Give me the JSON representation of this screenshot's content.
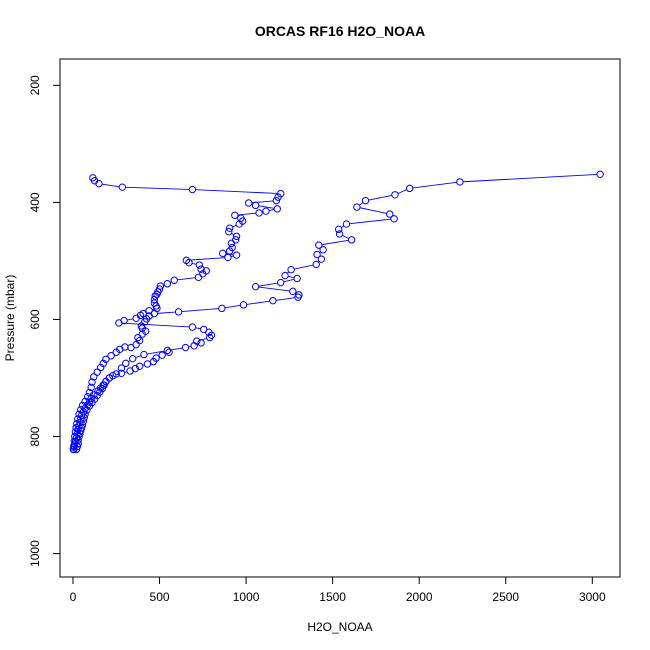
{
  "chart_data": {
    "type": "line",
    "title": "ORCAS RF16 H2O_NOAA",
    "xlabel": "H2O_NOAA",
    "ylabel": "Pressure (mbar)",
    "xlim": [
      -75,
      3160
    ],
    "ylim": [
      1040,
      155
    ],
    "y_reversed": true,
    "x_ticks": [
      0,
      500,
      1000,
      1500,
      2000,
      2500,
      3000
    ],
    "y_ticks": [
      200,
      400,
      600,
      800,
      1000
    ],
    "grid": false,
    "legend": "none",
    "marker": "open-circle",
    "color": "#0000ff",
    "series": [
      {
        "points": [
          [
            3045,
            352
          ],
          [
            2235,
            365
          ],
          [
            1945,
            376
          ],
          [
            1860,
            387
          ],
          [
            1690,
            397
          ],
          [
            1640,
            408
          ],
          [
            1830,
            420
          ],
          [
            1855,
            428
          ],
          [
            1580,
            437
          ],
          [
            1535,
            446
          ],
          [
            1540,
            454
          ],
          [
            1610,
            464
          ],
          [
            1420,
            473
          ],
          [
            1445,
            481
          ],
          [
            1410,
            489
          ],
          [
            1435,
            497
          ],
          [
            1405,
            506
          ],
          [
            1260,
            515
          ],
          [
            1225,
            525
          ],
          [
            1295,
            530
          ],
          [
            1200,
            537
          ],
          [
            1055,
            544
          ],
          [
            1270,
            552
          ],
          [
            1305,
            558
          ],
          [
            1300,
            562
          ],
          [
            1155,
            568
          ],
          [
            985,
            575
          ],
          [
            860,
            581
          ],
          [
            610,
            587
          ],
          [
            470,
            590
          ],
          [
            440,
            594
          ],
          [
            425,
            599
          ],
          [
            415,
            604
          ],
          [
            395,
            611
          ],
          [
            400,
            615
          ],
          [
            420,
            620
          ],
          [
            400,
            625
          ],
          [
            375,
            631
          ],
          [
            385,
            636
          ],
          [
            365,
            643
          ],
          [
            335,
            648
          ]
        ]
      },
      {
        "points": [
          [
            115,
            358
          ],
          [
            125,
            363
          ],
          [
            150,
            368
          ],
          [
            285,
            374
          ],
          [
            690,
            378
          ],
          [
            1200,
            385
          ],
          [
            1185,
            391
          ],
          [
            1175,
            397
          ],
          [
            1015,
            401
          ],
          [
            1055,
            405
          ],
          [
            1180,
            411
          ],
          [
            1115,
            415
          ],
          [
            1075,
            418
          ],
          [
            935,
            422
          ],
          [
            970,
            427
          ],
          [
            980,
            432
          ],
          [
            960,
            437
          ],
          [
            905,
            444
          ],
          [
            900,
            450
          ],
          [
            945,
            458
          ],
          [
            940,
            464
          ],
          [
            915,
            470
          ],
          [
            920,
            477
          ],
          [
            905,
            483
          ],
          [
            865,
            487
          ],
          [
            945,
            490
          ],
          [
            895,
            494
          ],
          [
            655,
            499
          ],
          [
            670,
            503
          ],
          [
            730,
            507
          ],
          [
            740,
            514
          ],
          [
            770,
            517
          ],
          [
            750,
            522
          ],
          [
            725,
            528
          ],
          [
            585,
            533
          ],
          [
            545,
            539
          ],
          [
            505,
            543
          ],
          [
            500,
            548
          ],
          [
            490,
            553
          ],
          [
            485,
            557
          ],
          [
            475,
            560
          ],
          [
            470,
            566
          ],
          [
            470,
            572
          ],
          [
            480,
            577
          ],
          [
            485,
            581
          ],
          [
            440,
            585
          ],
          [
            405,
            590
          ],
          [
            390,
            593
          ],
          [
            365,
            598
          ],
          [
            295,
            602
          ],
          [
            265,
            606
          ],
          [
            690,
            613
          ],
          [
            755,
            617
          ],
          [
            785,
            622
          ],
          [
            800,
            627
          ],
          [
            790,
            631
          ],
          [
            715,
            637
          ],
          [
            740,
            640
          ],
          [
            700,
            645
          ],
          [
            650,
            648
          ],
          [
            545,
            653
          ],
          [
            410,
            660
          ],
          [
            345,
            667
          ],
          [
            305,
            675
          ],
          [
            280,
            683
          ],
          [
            250,
            693
          ],
          [
            210,
            700
          ],
          [
            190,
            706
          ],
          [
            175,
            712
          ],
          [
            160,
            717
          ],
          [
            145,
            722
          ],
          [
            120,
            729
          ],
          [
            105,
            735
          ],
          [
            95,
            741
          ],
          [
            85,
            746
          ],
          [
            70,
            752
          ],
          [
            60,
            758
          ],
          [
            50,
            764
          ],
          [
            45,
            770
          ],
          [
            40,
            776
          ],
          [
            35,
            782
          ],
          [
            30,
            788
          ],
          [
            25,
            795
          ],
          [
            20,
            802
          ],
          [
            15,
            808
          ],
          [
            10,
            813
          ],
          [
            5,
            818
          ],
          [
            5,
            822
          ]
        ]
      },
      {
        "points": [
          [
            2,
            822
          ],
          [
            5,
            816
          ],
          [
            8,
            808
          ],
          [
            10,
            800
          ],
          [
            14,
            792
          ],
          [
            18,
            785
          ],
          [
            22,
            778
          ],
          [
            28,
            770
          ],
          [
            35,
            762
          ],
          [
            45,
            754
          ],
          [
            55,
            747
          ],
          [
            70,
            740
          ],
          [
            85,
            732
          ],
          [
            95,
            725
          ],
          [
            105,
            716
          ],
          [
            110,
            707
          ],
          [
            120,
            698
          ],
          [
            140,
            690
          ],
          [
            160,
            682
          ],
          [
            175,
            675
          ],
          [
            190,
            668
          ],
          [
            220,
            662
          ],
          [
            250,
            656
          ],
          [
            270,
            651
          ],
          [
            300,
            647
          ]
        ]
      },
      {
        "points": [
          [
            20,
            822
          ],
          [
            25,
            817
          ],
          [
            30,
            812
          ],
          [
            30,
            806
          ],
          [
            35,
            800
          ],
          [
            40,
            795
          ],
          [
            45,
            790
          ],
          [
            50,
            785
          ],
          [
            55,
            780
          ],
          [
            60,
            774
          ],
          [
            65,
            768
          ],
          [
            70,
            762
          ],
          [
            80,
            755
          ],
          [
            95,
            748
          ],
          [
            110,
            742
          ],
          [
            125,
            736
          ],
          [
            140,
            730
          ],
          [
            155,
            724
          ],
          [
            170,
            718
          ],
          [
            180,
            712
          ],
          [
            190,
            706
          ],
          [
            210,
            700
          ],
          [
            230,
            696
          ],
          [
            280,
            692
          ],
          [
            330,
            688
          ],
          [
            360,
            684
          ],
          [
            385,
            680
          ],
          [
            430,
            676
          ],
          [
            465,
            672
          ],
          [
            480,
            666
          ],
          [
            515,
            661
          ],
          [
            555,
            656
          ]
        ]
      }
    ]
  }
}
